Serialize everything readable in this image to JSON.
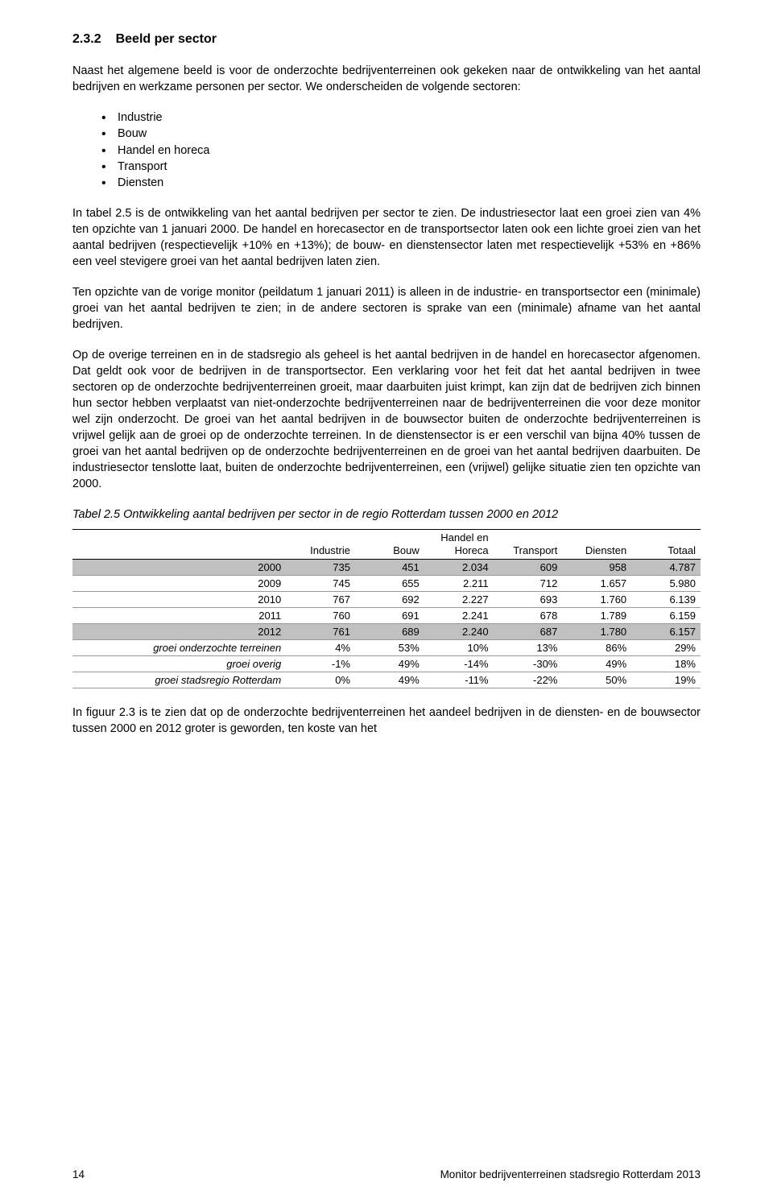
{
  "heading": {
    "num": "2.3.2",
    "title": "Beeld per sector"
  },
  "p1": "Naast het algemene beeld is voor de onderzochte bedrijventerreinen ook gekeken naar de ontwikkeling van het aantal bedrijven en werkzame personen per sector. We onderscheiden de volgende sectoren:",
  "sectors": {
    "0": "Industrie",
    "1": "Bouw",
    "2": "Handel en horeca",
    "3": "Transport",
    "4": "Diensten"
  },
  "p2": "In tabel 2.5 is de ontwikkeling van het aantal bedrijven per sector te zien. De industriesector laat een groei zien van 4% ten opzichte van 1 januari 2000. De handel en horecasector en de transportsector laten ook een lichte groei zien van het aantal bedrijven (respectievelijk +10% en +13%); de bouw- en dienstensector laten met respectievelijk +53% en +86% een veel stevigere groei van het aantal bedrijven laten zien.",
  "p3": "Ten opzichte van de vorige monitor (peildatum 1 januari 2011) is alleen in de industrie- en transportsector een (minimale) groei van het aantal bedrijven te zien; in de andere sectoren is sprake van een (minimale) afname van het aantal bedrijven.",
  "p4": "Op de overige terreinen en in de stadsregio als geheel is het aantal bedrijven in de handel en horecasector afgenomen. Dat geldt ook voor de bedrijven in de transportsector. Een verklaring voor het feit dat het aantal bedrijven in twee sectoren op de onderzochte bedrijventerreinen groeit, maar daarbuiten juist krimpt, kan zijn dat de bedrijven zich binnen hun sector hebben verplaatst van niet-onderzochte bedrijventerreinen naar de bedrijventerreinen die voor deze monitor wel zijn onderzocht. De groei van het aantal bedrijven in de bouwsector buiten de onderzochte bedrijventerreinen is vrijwel gelijk aan de groei op de onderzochte terreinen. In de dienstensector is er een verschil van bijna 40% tussen de groei van het aantal bedrijven op de onderzochte bedrijventerreinen en de groei van het aantal bedrijven daarbuiten. De industriesector tenslotte laat, buiten de onderzochte bedrijventerreinen, een (vrijwel) gelijke situatie zien ten opzichte van 2000.",
  "table_caption": "Tabel 2.5  Ontwikkeling aantal bedrijven per sector in de regio Rotterdam tussen 2000 en 2012",
  "table": {
    "headers": {
      "0": "",
      "1": "Industrie",
      "2": "Bouw",
      "3": "Handel en\nHoreca",
      "4": "Transport",
      "5": "Diensten",
      "6": "Totaal"
    },
    "rows": {
      "0": {
        "shaded": true,
        "label": "2000",
        "c1": "735",
        "c2": "451",
        "c3": "2.034",
        "c4": "609",
        "c5": "958",
        "c6": "4.787"
      },
      "1": {
        "shaded": false,
        "label": "2009",
        "c1": "745",
        "c2": "655",
        "c3": "2.211",
        "c4": "712",
        "c5": "1.657",
        "c6": "5.980"
      },
      "2": {
        "shaded": false,
        "label": "2010",
        "c1": "767",
        "c2": "692",
        "c3": "2.227",
        "c4": "693",
        "c5": "1.760",
        "c6": "6.139"
      },
      "3": {
        "shaded": false,
        "label": "2011",
        "c1": "760",
        "c2": "691",
        "c3": "2.241",
        "c4": "678",
        "c5": "1.789",
        "c6": "6.159"
      },
      "4": {
        "shaded": true,
        "label": "2012",
        "c1": "761",
        "c2": "689",
        "c3": "2.240",
        "c4": "687",
        "c5": "1.780",
        "c6": "6.157"
      },
      "5": {
        "shaded": false,
        "italic": true,
        "label": "groei onderzochte terreinen",
        "c1": "4%",
        "c2": "53%",
        "c3": "10%",
        "c4": "13%",
        "c5": "86%",
        "c6": "29%"
      },
      "6": {
        "shaded": false,
        "italic": true,
        "label": "groei overig",
        "c1": "-1%",
        "c2": "49%",
        "c3": "-14%",
        "c4": "-30%",
        "c5": "49%",
        "c6": "18%"
      },
      "7": {
        "shaded": false,
        "italic": true,
        "label": "groei stadsregio Rotterdam",
        "c1": "0%",
        "c2": "49%",
        "c3": "-11%",
        "c4": "-22%",
        "c5": "50%",
        "c6": "19%"
      }
    }
  },
  "p5": "In figuur 2.3 is te zien dat op de onderzochte bedrijventerreinen het aandeel bedrijven in de diensten- en de bouwsector tussen 2000 en 2012 groter is geworden, ten koste van het",
  "footer": {
    "page": "14",
    "title": "Monitor bedrijventerreinen stadsregio Rotterdam 2013"
  },
  "style": {
    "page_bg": "#ffffff",
    "text_color": "#000000",
    "shaded_row_bg": "#c0c0c0",
    "font_family": "Arial, Helvetica, sans-serif",
    "body_fontsize_pt": 11,
    "heading_fontsize_pt": 12,
    "line_height": 1.38
  }
}
